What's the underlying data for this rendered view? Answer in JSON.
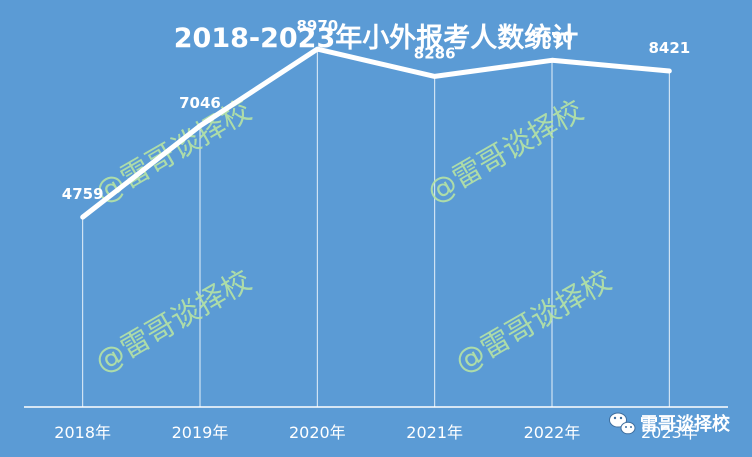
{
  "chart_data": {
    "type": "line",
    "title": "2018-2023年小外报考人数统计",
    "categories": [
      "2018年",
      "2019年",
      "2020年",
      "2021年",
      "2022年",
      "2023年"
    ],
    "values": [
      4759,
      7046,
      8970,
      8286,
      8690,
      8421
    ],
    "ylim": [
      0,
      10000
    ],
    "grid": false,
    "legend": "none",
    "line_color": "#ffffff",
    "background_color": "#5b9bd5"
  },
  "watermarks": [
    "@雷哥谈择校",
    "@雷哥谈择校",
    "@雷哥谈择校",
    "@雷哥谈择校"
  ],
  "brand": {
    "icon": "wechat-icon",
    "label": "雷哥谈择校"
  },
  "colors": {
    "watermark": "#b6e3a4",
    "text": "#ffffff"
  }
}
